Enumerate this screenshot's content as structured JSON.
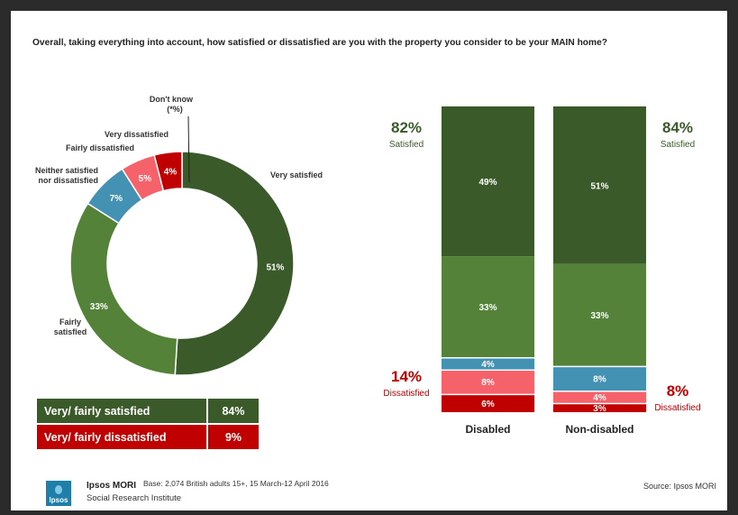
{
  "question": "Overall, taking everything into account, how satisfied or dissatisfied are you with the property you consider to be your MAIN home?",
  "colors": {
    "very_satisfied": "#3b5a2a",
    "fairly_satisfied": "#538238",
    "neither": "#4392b3",
    "fairly_dissatisfied": "#f6626a",
    "very_dissatisfied": "#c00000",
    "dont_know": "#222222",
    "satisfied_text": "#3b5a2a",
    "dissatisfied_text": "#c00000"
  },
  "chart_data": [
    {
      "type": "pie",
      "slices": [
        {
          "label": "Very satisfied",
          "value": 51,
          "display": "51%"
        },
        {
          "label": "Fairly satisfied",
          "value": 33,
          "display": "33%"
        },
        {
          "label": "Neither satisfied nor dissatisfied",
          "value": 7,
          "display": "7%"
        },
        {
          "label": "Fairly dissatisfied",
          "value": 5,
          "display": "5%"
        },
        {
          "label": "Very dissatisfied",
          "value": 4,
          "display": "4%"
        },
        {
          "label": "Don't know",
          "value": 0,
          "display": "(*%)"
        }
      ]
    },
    {
      "type": "bar",
      "stacked": true,
      "categories": [
        "Disabled",
        "Non-disabled"
      ],
      "series": [
        {
          "name": "Very satisfied",
          "values": [
            49,
            51
          ]
        },
        {
          "name": "Fairly satisfied",
          "values": [
            33,
            33
          ]
        },
        {
          "name": "Neither satisfied nor dissatisfied",
          "values": [
            4,
            8
          ]
        },
        {
          "name": "Fairly dissatisfied",
          "values": [
            8,
            4
          ]
        },
        {
          "name": "Very dissatisfied",
          "values": [
            6,
            3
          ]
        }
      ],
      "totals": {
        "satisfied": [
          "82%",
          "84%"
        ],
        "dissatisfied": [
          "14%",
          "8%"
        ],
        "satisfied_label": "Satisfied",
        "dissatisfied_label": "Dissatisfied"
      }
    }
  ],
  "summary": {
    "satisfied_label": "Very/ fairly satisfied",
    "satisfied_value": "84%",
    "dissatisfied_label": "Very/ fairly dissatisfied",
    "dissatisfied_value": "9%"
  },
  "footer": {
    "logo_text": "Ipsos",
    "brand": "Ipsos MORI",
    "base": "Base: 2,074 British adults 15+, 15 March-12 April 2016",
    "sub": "Social Research Institute",
    "source": "Source: Ipsos MORI"
  }
}
